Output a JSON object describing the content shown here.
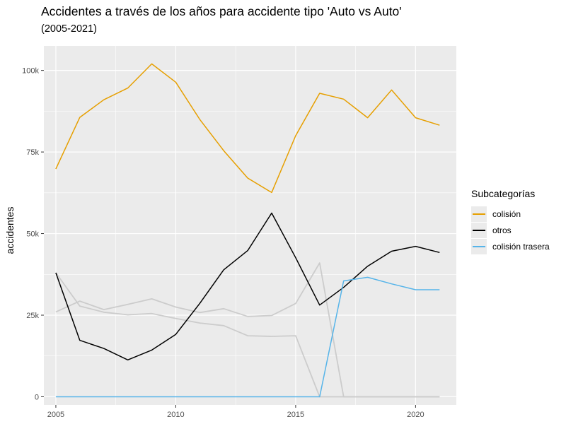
{
  "chart_data": {
    "type": "line",
    "title": "Accidentes a través de los años para accidente tipo 'Auto vs Auto'",
    "subtitle": "(2005-2021)",
    "xlabel": "",
    "ylabel": "accidentes",
    "xlim": [
      2004.5,
      2021.7
    ],
    "ylim": [
      -2500,
      107500
    ],
    "x_ticks": [
      2005,
      2010,
      2015,
      2020
    ],
    "x_tick_labels": [
      "2005",
      "2010",
      "2015",
      "2020"
    ],
    "y_ticks": [
      0,
      25000,
      50000,
      75000,
      100000
    ],
    "y_tick_labels": [
      "0",
      "25k",
      "50k",
      "75k",
      "100k"
    ],
    "x": [
      2005,
      2006,
      2007,
      2008,
      2009,
      2010,
      2011,
      2012,
      2013,
      2014,
      2015,
      2016,
      2017,
      2018,
      2019,
      2020,
      2021
    ],
    "series": [
      {
        "name": "",
        "color": "#cccccc",
        "values": [
          26000,
          29300,
          26700,
          28300,
          30000,
          27500,
          25800,
          27000,
          24600,
          24900,
          28600,
          41000,
          0,
          0,
          0,
          0,
          0
        ]
      },
      {
        "name": "",
        "color": "#cccccc",
        "values": [
          38000,
          27800,
          25900,
          25100,
          25500,
          24000,
          22600,
          21800,
          18700,
          18500,
          18700,
          0,
          0,
          0,
          0,
          0,
          0
        ]
      },
      {
        "name": "colisión",
        "color": "#e69f00",
        "values": [
          69800,
          85600,
          91000,
          94600,
          102000,
          96400,
          85000,
          75400,
          67000,
          62600,
          80000,
          93000,
          91200,
          85500,
          94000,
          85500,
          83200
        ]
      },
      {
        "name": "otros",
        "color": "#000000",
        "values": [
          38000,
          17300,
          14800,
          11300,
          14300,
          19100,
          28600,
          38900,
          44800,
          56300,
          42600,
          28100,
          33500,
          40000,
          44600,
          46100,
          44200
        ]
      },
      {
        "name": "colisión trasera",
        "color": "#56b4e9",
        "values": [
          0,
          0,
          0,
          0,
          0,
          0,
          0,
          0,
          0,
          0,
          0,
          0,
          35500,
          36600,
          34600,
          32800,
          32800
        ]
      }
    ],
    "legend_title": "Subcategorías",
    "legend_position": "right",
    "grid": true
  }
}
